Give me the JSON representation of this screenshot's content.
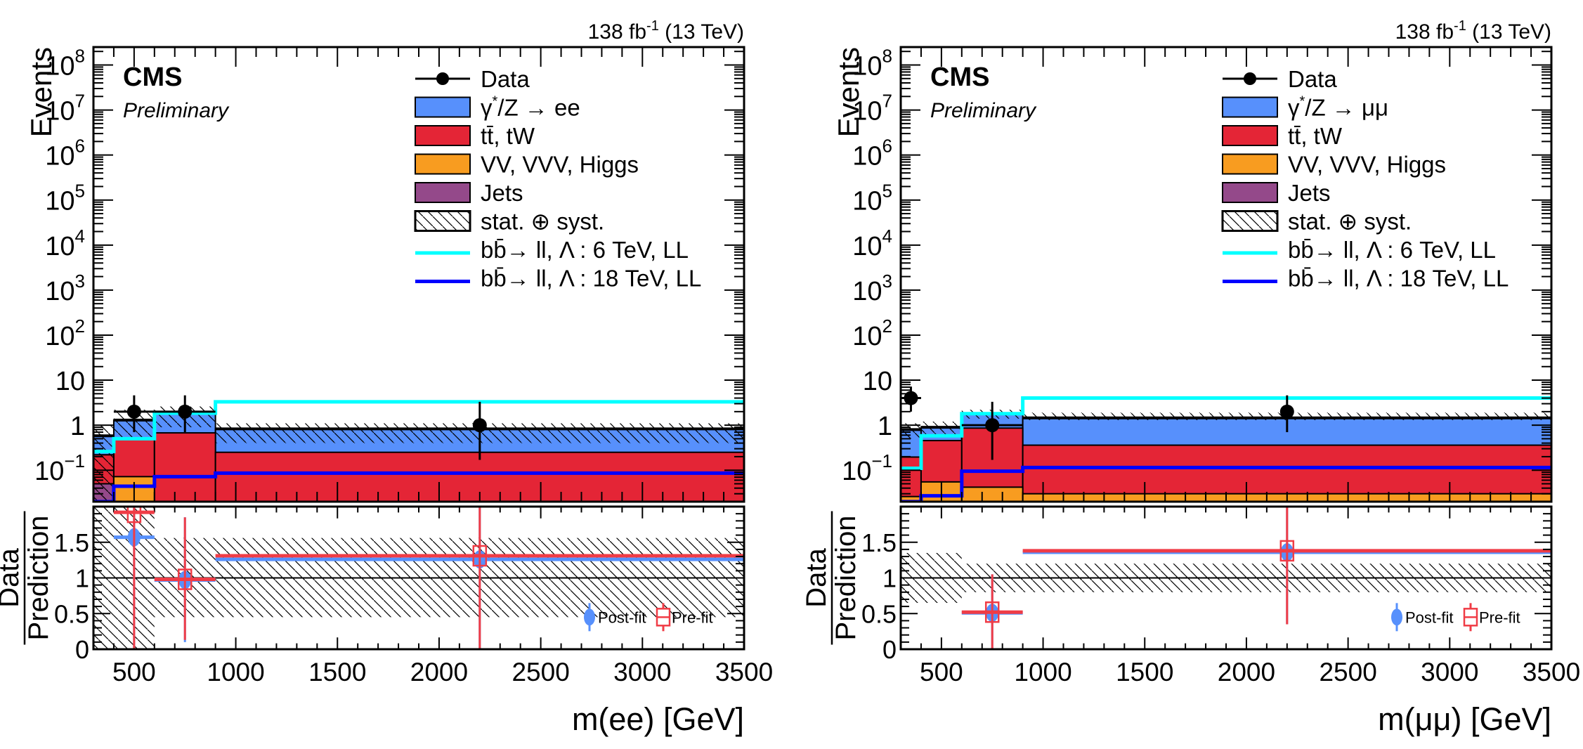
{
  "chart_data": [
    {
      "type": "bar",
      "subtype": "stacked-histogram-with-ratio",
      "channel": "ee",
      "lumi_label": "138 fb",
      "lumi_sup": "-1",
      "lumi_suffix": " (13 TeV)",
      "experiment": "CMS",
      "status": "Preliminary",
      "xlabel": "m(ee) [GeV]",
      "ylabel": "Events",
      "ratio_ylabel_num": "Data",
      "ratio_ylabel_den": "Prediction",
      "xlim": [
        300,
        3500
      ],
      "ylim": [
        0.02,
        250000000
      ],
      "yscale": "log",
      "ratio_ylim": [
        0,
        2
      ],
      "x_ticks": [
        500,
        1000,
        1500,
        2000,
        2500,
        3000,
        3500
      ],
      "y_ticks": [
        {
          "value": 0.1,
          "base": "10",
          "exp": "−1"
        },
        {
          "value": 1,
          "base": "1",
          "exp": ""
        },
        {
          "value": 10,
          "base": "10",
          "exp": ""
        },
        {
          "value": 100,
          "base": "10",
          "exp": "2"
        },
        {
          "value": 1000,
          "base": "10",
          "exp": "3"
        },
        {
          "value": 10000,
          "base": "10",
          "exp": "4"
        },
        {
          "value": 100000,
          "base": "10",
          "exp": "5"
        },
        {
          "value": 1000000,
          "base": "10",
          "exp": "6"
        },
        {
          "value": 10000000,
          "base": "10",
          "exp": "7"
        },
        {
          "value": 100000000,
          "base": "10",
          "exp": "8"
        }
      ],
      "ratio_y_ticks": [
        {
          "value": 0,
          "label": "0"
        },
        {
          "value": 0.5,
          "label": "0.5"
        },
        {
          "value": 1,
          "label": "1"
        },
        {
          "value": 1.5,
          "label": "1.5"
        }
      ],
      "bin_edges": [
        300,
        400,
        600,
        900,
        3500
      ],
      "stack": [
        {
          "name": "Jets",
          "color": "#94498a",
          "values": [
            0.05,
            0,
            0,
            0
          ]
        },
        {
          "name": "VV, VVV, Higgs",
          "color": "#f89c20",
          "values": [
            0,
            0.072,
            0.015,
            0.01
          ]
        },
        {
          "name": "tt̄, tW",
          "color": "#e42536",
          "values": [
            0.17,
            0.42,
            0.66,
            0.24
          ]
        },
        {
          "name": "γ*/Z → ee",
          "color": "#5790fc",
          "values": [
            0.36,
            0.82,
            1.2,
            0.58
          ]
        }
      ],
      "uncertainty_band": {
        "name": "stat. ⊕ syst.",
        "low": [
          0.02,
          0.5,
          0.9,
          0.4
        ],
        "high": [
          1.0,
          2.2,
          2.6,
          1.1
        ]
      },
      "total_line": [
        0.58,
        1.3,
        1.85,
        0.83
      ],
      "signals": [
        {
          "name": "bb̄→ ll, Λ : 6 TeV, LL",
          "color": "#00ffff",
          "values": [
            0.26,
            0.5,
            1.85,
            3.3
          ]
        },
        {
          "name": "bb̄→ ll, Λ : 18 TeV, LL",
          "color": "#0000ff",
          "values": [
            0.02,
            0.044,
            0.072,
            0.086
          ]
        }
      ],
      "data": {
        "name": "Data",
        "x": [
          500,
          750,
          2200
        ],
        "y": [
          2,
          2,
          1
        ],
        "yerr_low": [
          1.3,
          1.3,
          0.83
        ],
        "yerr_high": [
          2.6,
          2.6,
          2.3
        ],
        "xerr": [
          100,
          150,
          0
        ]
      },
      "ratio_band": {
        "low": [
          0,
          0,
          0.45,
          0.45
        ],
        "high": [
          2.0,
          2.0,
          1.56,
          1.56
        ]
      },
      "ratio_postfit": {
        "name": "Post-fit",
        "color": "#5790fc",
        "points": [
          {
            "x": 500,
            "xlo": 400,
            "xhi": 600,
            "y": 1.57,
            "ylo": 0,
            "yhi": 2.0
          },
          {
            "x": 750,
            "xlo": 600,
            "xhi": 900,
            "y": 0.97,
            "ylo": 0.1,
            "yhi": 1.85
          },
          {
            "x": 2200,
            "xlo": 900,
            "xhi": 3500,
            "y": 1.26,
            "ylo": 0,
            "yhi": 2.0
          }
        ]
      },
      "ratio_prefit": {
        "name": "Pre-fit",
        "color": "#f03c46",
        "points": [
          {
            "x": 500,
            "xlo": 400,
            "xhi": 600,
            "y": 1.92,
            "ylo": 0,
            "yhi": 2.0
          },
          {
            "x": 750,
            "xlo": 600,
            "xhi": 900,
            "y": 0.98,
            "ylo": 0.13,
            "yhi": 1.85
          },
          {
            "x": 2200,
            "xlo": 900,
            "xhi": 3500,
            "y": 1.31,
            "ylo": 0,
            "yhi": 2.0
          }
        ]
      },
      "legend": {
        "placement": "top-right",
        "entries": [
          {
            "kind": "data",
            "label": "Data"
          },
          {
            "kind": "box",
            "color": "#5790fc",
            "label_pre": "γ",
            "label_sup": "*",
            "label_post": "/Z → ee"
          },
          {
            "kind": "box",
            "color": "#e42536",
            "label_pre": "tt̄, tW",
            "label_sup": "",
            "label_post": ""
          },
          {
            "kind": "box",
            "color": "#f89c20",
            "label_pre": "VV, VVV, Higgs",
            "label_sup": "",
            "label_post": ""
          },
          {
            "kind": "box",
            "color": "#94498a",
            "label_pre": "Jets",
            "label_sup": "",
            "label_post": ""
          },
          {
            "kind": "hatch",
            "label_pre": "stat. ⊕ syst.",
            "label_sup": "",
            "label_post": ""
          },
          {
            "kind": "line",
            "color": "#00ffff",
            "label_pre": "bb̄→ ll, Λ : 6 TeV, LL",
            "label_sup": "",
            "label_post": ""
          },
          {
            "kind": "line",
            "color": "#0000ff",
            "label_pre": "bb̄→ ll, Λ : 18 TeV, LL",
            "label_sup": "",
            "label_post": ""
          }
        ]
      },
      "ratio_legend": {
        "placement": "bottom-right",
        "postfit": "Post-fit",
        "prefit": "Pre-fit"
      }
    },
    {
      "type": "bar",
      "subtype": "stacked-histogram-with-ratio",
      "channel": "mumu",
      "lumi_label": "138 fb",
      "lumi_sup": "-1",
      "lumi_suffix": " (13 TeV)",
      "experiment": "CMS",
      "status": "Preliminary",
      "xlabel": "m(μμ) [GeV]",
      "ylabel": "Events",
      "ratio_ylabel_num": "Data",
      "ratio_ylabel_den": "Prediction",
      "xlim": [
        300,
        3500
      ],
      "ylim": [
        0.02,
        250000000
      ],
      "yscale": "log",
      "ratio_ylim": [
        0,
        2
      ],
      "x_ticks": [
        500,
        1000,
        1500,
        2000,
        2500,
        3000,
        3500
      ],
      "y_ticks": [
        {
          "value": 0.1,
          "base": "10",
          "exp": "−1"
        },
        {
          "value": 1,
          "base": "1",
          "exp": ""
        },
        {
          "value": 10,
          "base": "10",
          "exp": ""
        },
        {
          "value": 100,
          "base": "10",
          "exp": "2"
        },
        {
          "value": 1000,
          "base": "10",
          "exp": "3"
        },
        {
          "value": 10000,
          "base": "10",
          "exp": "4"
        },
        {
          "value": 100000,
          "base": "10",
          "exp": "5"
        },
        {
          "value": 1000000,
          "base": "10",
          "exp": "6"
        },
        {
          "value": 10000000,
          "base": "10",
          "exp": "7"
        },
        {
          "value": 100000000,
          "base": "10",
          "exp": "8"
        }
      ],
      "ratio_y_ticks": [
        {
          "value": 0,
          "label": "0"
        },
        {
          "value": 0.5,
          "label": "0.5"
        },
        {
          "value": 1,
          "label": "1"
        },
        {
          "value": 1.5,
          "label": "1.5"
        }
      ],
      "bin_edges": [
        300,
        400,
        600,
        900,
        3500
      ],
      "stack": [
        {
          "name": "Jets",
          "color": "#94498a",
          "values": [
            0,
            0,
            0,
            0
          ]
        },
        {
          "name": "VV, VVV, Higgs",
          "color": "#f89c20",
          "values": [
            0.026,
            0.055,
            0.042,
            0.03
          ]
        },
        {
          "name": "tt̄, tW",
          "color": "#e42536",
          "values": [
            0.17,
            0.4,
            0.82,
            0.33
          ]
        },
        {
          "name": "γ*/Z → μμ",
          "color": "#5790fc",
          "values": [
            0.6,
            0.45,
            0.95,
            1.05
          ]
        }
      ],
      "uncertainty_band": {
        "name": "stat. ⊕ syst.",
        "low": [
          0.5,
          0.6,
          1.4,
          1.3
        ],
        "high": [
          1.1,
          1.2,
          2.2,
          1.9
        ]
      },
      "total_line": [
        0.8,
        0.9,
        1.8,
        1.45
      ],
      "signals": [
        {
          "name": "bb̄→ ll, Λ : 6 TeV, LL",
          "color": "#00ffff",
          "values": [
            0.11,
            0.58,
            1.8,
            4.0
          ]
        },
        {
          "name": "bb̄→ ll, Λ : 18 TeV, LL",
          "color": "#0000ff",
          "values": [
            0.02,
            0.027,
            0.095,
            0.115
          ]
        }
      ],
      "data": {
        "name": "Data",
        "x": [
          350,
          750,
          2200
        ],
        "y": [
          4,
          1,
          2
        ],
        "yerr_low": [
          2,
          0.83,
          1.3
        ],
        "yerr_high": [
          3.2,
          2.3,
          2.6
        ],
        "xerr": [
          50,
          150,
          0
        ]
      },
      "ratio_band": {
        "low": [
          0.65,
          0.65,
          0.8,
          0.8
        ],
        "high": [
          1.35,
          1.35,
          1.2,
          1.2
        ]
      },
      "ratio_postfit": {
        "name": "Post-fit",
        "color": "#5790fc",
        "points": [
          {
            "x": 750,
            "xlo": 600,
            "xhi": 900,
            "y": 0.51,
            "ylo": 0,
            "yhi": 1.05
          },
          {
            "x": 2200,
            "xlo": 900,
            "xhi": 3500,
            "y": 1.36,
            "ylo": 0.35,
            "yhi": 2.0
          }
        ]
      },
      "ratio_prefit": {
        "name": "Pre-fit",
        "color": "#f03c46",
        "points": [
          {
            "x": 750,
            "xlo": 600,
            "xhi": 900,
            "y": 0.52,
            "ylo": 0,
            "yhi": 1.05
          },
          {
            "x": 2200,
            "xlo": 900,
            "xhi": 3500,
            "y": 1.38,
            "ylo": 0.35,
            "yhi": 2.0
          }
        ]
      },
      "legend": {
        "placement": "top-right",
        "entries": [
          {
            "kind": "data",
            "label": "Data"
          },
          {
            "kind": "box",
            "color": "#5790fc",
            "label_pre": "γ",
            "label_sup": "*",
            "label_post": "/Z → μμ"
          },
          {
            "kind": "box",
            "color": "#e42536",
            "label_pre": "tt̄, tW",
            "label_sup": "",
            "label_post": ""
          },
          {
            "kind": "box",
            "color": "#f89c20",
            "label_pre": "VV, VVV, Higgs",
            "label_sup": "",
            "label_post": ""
          },
          {
            "kind": "box",
            "color": "#94498a",
            "label_pre": "Jets",
            "label_sup": "",
            "label_post": ""
          },
          {
            "kind": "hatch",
            "label_pre": "stat. ⊕ syst.",
            "label_sup": "",
            "label_post": ""
          },
          {
            "kind": "line",
            "color": "#00ffff",
            "label_pre": "bb̄→ ll, Λ : 6 TeV, LL",
            "label_sup": "",
            "label_post": ""
          },
          {
            "kind": "line",
            "color": "#0000ff",
            "label_pre": "bb̄→ ll, Λ : 18 TeV, LL",
            "label_sup": "",
            "label_post": ""
          }
        ]
      },
      "ratio_legend": {
        "placement": "bottom-right",
        "postfit": "Post-fit",
        "prefit": "Pre-fit"
      }
    }
  ]
}
